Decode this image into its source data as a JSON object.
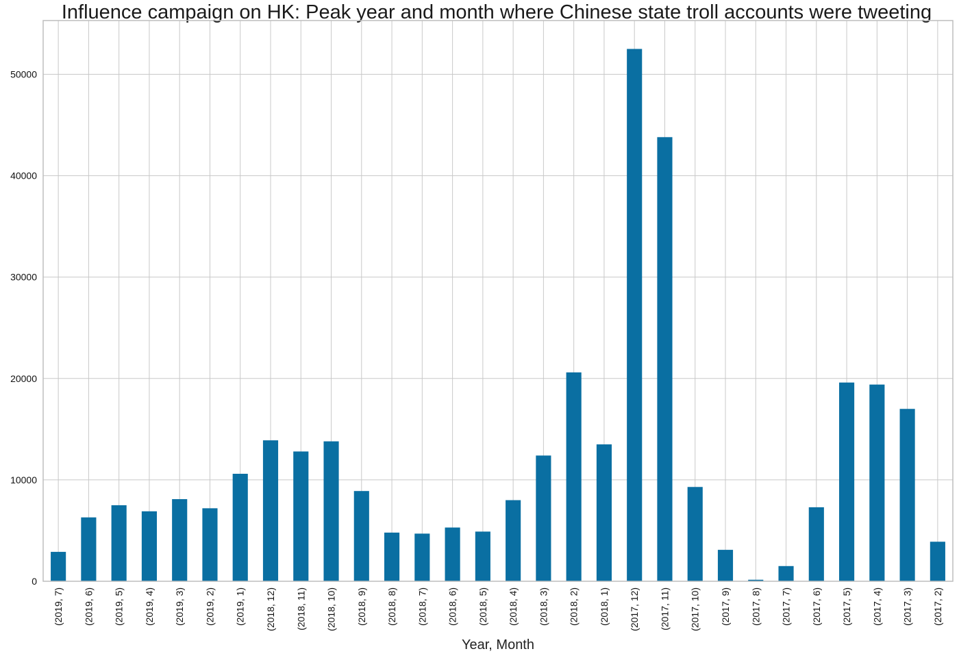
{
  "chart_data": {
    "type": "bar",
    "title": "Influence campaign on HK: Peak year and month where Chinese state troll accounts were tweeting",
    "xlabel": "Year, Month",
    "ylabel": "",
    "ylim": [
      0,
      55300
    ],
    "yticks": [
      0,
      10000,
      20000,
      30000,
      40000,
      50000
    ],
    "grid": true,
    "legend": "none",
    "bar_color": "#0a6fa2",
    "categories": [
      "(2019, 7)",
      "(2019, 6)",
      "(2019, 5)",
      "(2019, 4)",
      "(2019, 3)",
      "(2019, 2)",
      "(2019, 1)",
      "(2018, 12)",
      "(2018, 11)",
      "(2018, 10)",
      "(2018, 9)",
      "(2018, 8)",
      "(2018, 7)",
      "(2018, 6)",
      "(2018, 5)",
      "(2018, 4)",
      "(2018, 3)",
      "(2018, 2)",
      "(2018, 1)",
      "(2017, 12)",
      "(2017, 11)",
      "(2017, 10)",
      "(2017, 9)",
      "(2017, 8)",
      "(2017, 7)",
      "(2017, 6)",
      "(2017, 5)",
      "(2017, 4)",
      "(2017, 3)",
      "(2017, 2)"
    ],
    "values": [
      2900,
      6300,
      7500,
      6900,
      8100,
      7200,
      10600,
      13900,
      12800,
      13800,
      8900,
      4800,
      4700,
      5300,
      4900,
      8000,
      12400,
      20600,
      13500,
      52500,
      43800,
      9300,
      3100,
      150,
      1500,
      7300,
      19600,
      19400,
      17000,
      3900
    ]
  }
}
